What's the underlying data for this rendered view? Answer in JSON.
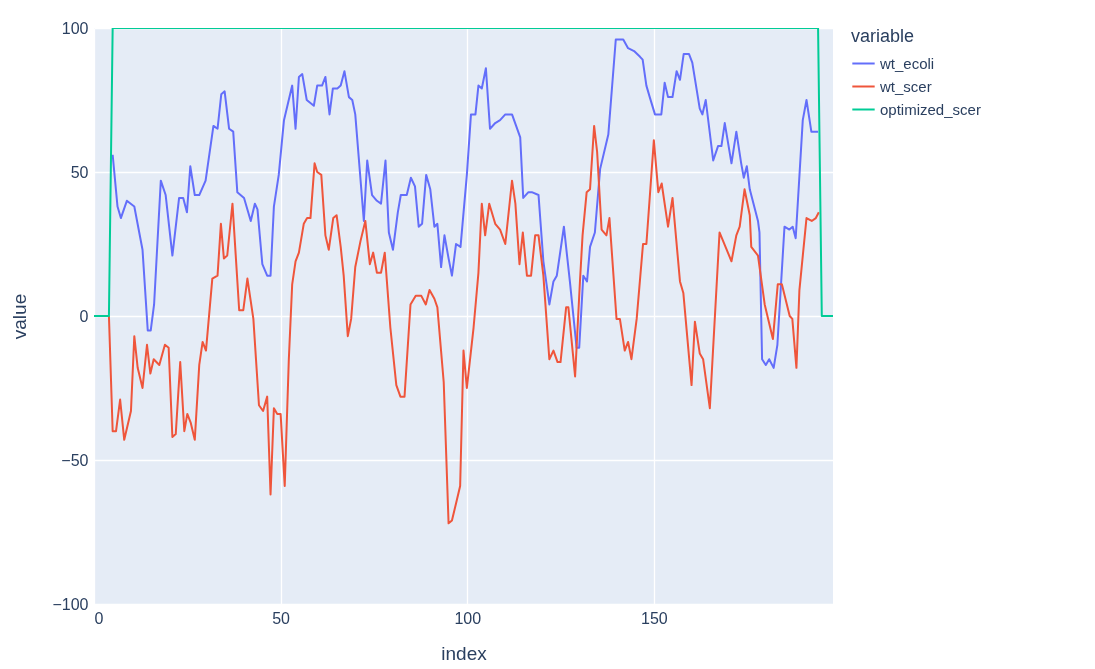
{
  "chart_data": {
    "type": "line",
    "xlabel": "index",
    "ylabel": "value",
    "legend_title": "variable",
    "legend": "top right",
    "grid": true,
    "xlim": [
      0,
      198
    ],
    "xticks": [
      0,
      50,
      100,
      150
    ],
    "ylim": [
      -100,
      100
    ],
    "yticks": [
      -100,
      -50,
      0,
      50,
      100
    ],
    "series": [
      {
        "name": "wt_ecoli",
        "color": "#636efa",
        "x": [
          5,
          6.3,
          7.2,
          8.8,
          10.8,
          13,
          14.4,
          15.2,
          16.1,
          17.9,
          19.2,
          21,
          22.8,
          23.9,
          24.9,
          25.8,
          27,
          28.2,
          29.9,
          32,
          33.1,
          34.1,
          35,
          36.2,
          37.3,
          38.4,
          40.2,
          42,
          43.1,
          43.8,
          45.1,
          46.4,
          47.3,
          48.2,
          49.5,
          50.9,
          53.1,
          54,
          54.9,
          55.8,
          57,
          58.9,
          59.8,
          61.1,
          62,
          63.1,
          64,
          65.2,
          66.1,
          67.1,
          68.3,
          69.2,
          70,
          72.3,
          73.2,
          74.5,
          75.8,
          76.9,
          78.1,
          79,
          80.1,
          81.4,
          82.2,
          83.8,
          84.9,
          86,
          87,
          87.9,
          89,
          90.1,
          91.2,
          92,
          93,
          93.9,
          95,
          95.9,
          97,
          98.2,
          99.9,
          101,
          102.2,
          103,
          103.9,
          105,
          106.1,
          107.5,
          108.8,
          110.2,
          112,
          113.1,
          114.2,
          115,
          116.4,
          117.3,
          119.1,
          120.4,
          122,
          123.1,
          124,
          125.9,
          127.5,
          129.3,
          130,
          131.1,
          132.1,
          132.9,
          134.2,
          135.6,
          137.8,
          139.8,
          141.8,
          143.1,
          144.7,
          146.3,
          147,
          148,
          148.9,
          150.3,
          152,
          152.9,
          153.8,
          155,
          156.1,
          157,
          158,
          159.4,
          160.3,
          162.3,
          163,
          163.9,
          165.9,
          167.2,
          168.1,
          169,
          170.8,
          172.1,
          173.4,
          174.1,
          174.9,
          175.7,
          177.9,
          178.3,
          179,
          180,
          180.9,
          182.1,
          183.1,
          185,
          186.3,
          187.2,
          188,
          189.9,
          190.9,
          192.2,
          194
        ],
        "values": [
          56,
          38,
          34,
          40,
          38,
          23,
          -5,
          -5,
          4,
          47,
          42,
          21,
          41,
          41,
          36,
          52,
          42,
          42,
          47,
          66,
          65,
          77,
          78,
          65,
          64,
          43,
          41,
          33,
          39,
          37,
          18,
          14,
          14,
          38,
          49,
          68,
          80,
          65,
          83,
          84,
          75,
          73,
          80,
          80,
          83,
          70,
          79,
          79,
          80,
          85,
          76,
          75,
          70,
          33,
          54,
          42,
          40,
          39,
          54,
          29,
          23,
          36,
          42,
          42,
          48,
          45,
          31,
          32,
          49,
          44,
          31,
          32,
          17,
          28,
          20,
          14,
          25,
          24,
          49,
          70,
          70,
          80,
          79,
          86,
          65,
          67,
          68,
          70,
          70,
          66,
          62,
          41,
          43,
          43,
          42,
          19,
          4,
          12,
          14,
          31,
          12,
          -11,
          -11,
          14,
          12,
          24,
          29,
          51,
          63,
          96,
          96,
          93,
          92,
          90,
          89,
          80,
          76,
          70,
          70,
          81,
          76,
          76,
          85,
          82,
          91,
          91,
          88,
          72,
          70,
          75,
          54,
          59,
          59,
          67,
          53,
          64,
          53,
          48,
          52,
          44,
          33,
          29,
          -15,
          -17,
          -15,
          -18,
          -10,
          31,
          30,
          31,
          27,
          68,
          75,
          64,
          64
        ]
      },
      {
        "name": "wt_scer",
        "color": "#ef553b",
        "x": [
          4,
          5,
          5.9,
          7,
          8.1,
          9.9,
          10.8,
          11.7,
          13,
          14.2,
          15.1,
          16,
          17.5,
          19,
          20,
          21,
          21.9,
          23.1,
          24.2,
          25,
          25.9,
          27,
          28.2,
          29.1,
          30,
          31.7,
          33.1,
          34,
          34.8,
          35.7,
          37.1,
          38.9,
          40,
          41.1,
          42.7,
          44.2,
          45.3,
          46.4,
          47.3,
          48.2,
          49.1,
          50,
          51.1,
          52.2,
          53.1,
          54,
          54.9,
          56.2,
          57.1,
          58,
          59.1,
          59.8,
          60.9,
          62,
          62.9,
          64.1,
          65,
          66.1,
          66.9,
          68,
          68.9,
          70,
          71.4,
          72.7,
          73.9,
          74.8,
          75.8,
          76.9,
          77.9,
          79.4,
          81,
          82.1,
          83.2,
          84.8,
          86.2,
          87.7,
          88.9,
          89.9,
          91.2,
          92,
          93.7,
          95,
          95.9,
          97.2,
          98.1,
          99,
          99.9,
          101.7,
          103,
          103.9,
          104.8,
          105.9,
          107.5,
          108.8,
          110.2,
          112,
          112.9,
          114,
          114.9,
          116,
          117.1,
          118.2,
          119.1,
          120.4,
          122,
          123.1,
          124.2,
          125,
          126.5,
          127.1,
          128.9,
          130.2,
          130.9,
          132,
          132.9,
          134,
          134.8,
          136,
          137.3,
          138.1,
          140,
          140.9,
          142.2,
          143.1,
          144,
          145.4,
          147.1,
          148,
          150,
          151.2,
          152.1,
          153.8,
          155,
          157,
          157.9,
          160.1,
          161,
          162.3,
          163.2,
          165,
          167.6,
          170.8,
          172.1,
          173,
          174.3,
          175.7,
          176.1,
          177.9,
          179.7,
          181.9,
          183.2,
          184.3,
          186.4,
          187.1,
          188.2,
          189,
          190.9,
          192.3,
          193.4,
          194.2
        ],
        "values": [
          0,
          -40,
          -40,
          -29,
          -43,
          -33,
          -7,
          -18,
          -25,
          -10,
          -20,
          -15,
          -17,
          -10,
          -11,
          -42,
          -41,
          -16,
          -40,
          -34,
          -37,
          -43,
          -17,
          -9,
          -12,
          13,
          14,
          32,
          20,
          21,
          39,
          2,
          2,
          13,
          -1,
          -31,
          -33,
          -28,
          -62,
          -32,
          -34,
          -34,
          -59,
          -15,
          11,
          19,
          22,
          32,
          34,
          34,
          53,
          50,
          49,
          28,
          23,
          34,
          35,
          24,
          14,
          -7,
          -1,
          17,
          26,
          33,
          18,
          22,
          15,
          15,
          22,
          -4,
          -24,
          -28,
          -28,
          4,
          7,
          7,
          4,
          9,
          6,
          3,
          -23,
          -72,
          -71,
          -64,
          -59,
          -12,
          -25,
          -4,
          15,
          39,
          28,
          39,
          32,
          30,
          25,
          47,
          39,
          18,
          29,
          14,
          14,
          28,
          28,
          14,
          -15,
          -12,
          -16,
          -16,
          3,
          3,
          -21,
          12,
          28,
          43,
          44,
          66,
          57,
          30,
          28,
          34,
          -1,
          -1,
          -12,
          -9,
          -15,
          -1,
          25,
          25,
          61,
          43,
          46,
          31,
          41,
          12,
          8,
          -24,
          -2,
          -13,
          -15,
          -32,
          29,
          19,
          28,
          31,
          44,
          35,
          24,
          21,
          4,
          -8,
          11,
          11,
          0,
          -1,
          -18,
          9,
          34,
          33,
          34,
          36
        ]
      },
      {
        "name": "optimized_scer",
        "color": "#00cc96",
        "x": [
          0,
          4,
          5,
          194,
          195,
          198
        ],
        "values": [
          0,
          0,
          100,
          100,
          0,
          0
        ]
      }
    ]
  }
}
